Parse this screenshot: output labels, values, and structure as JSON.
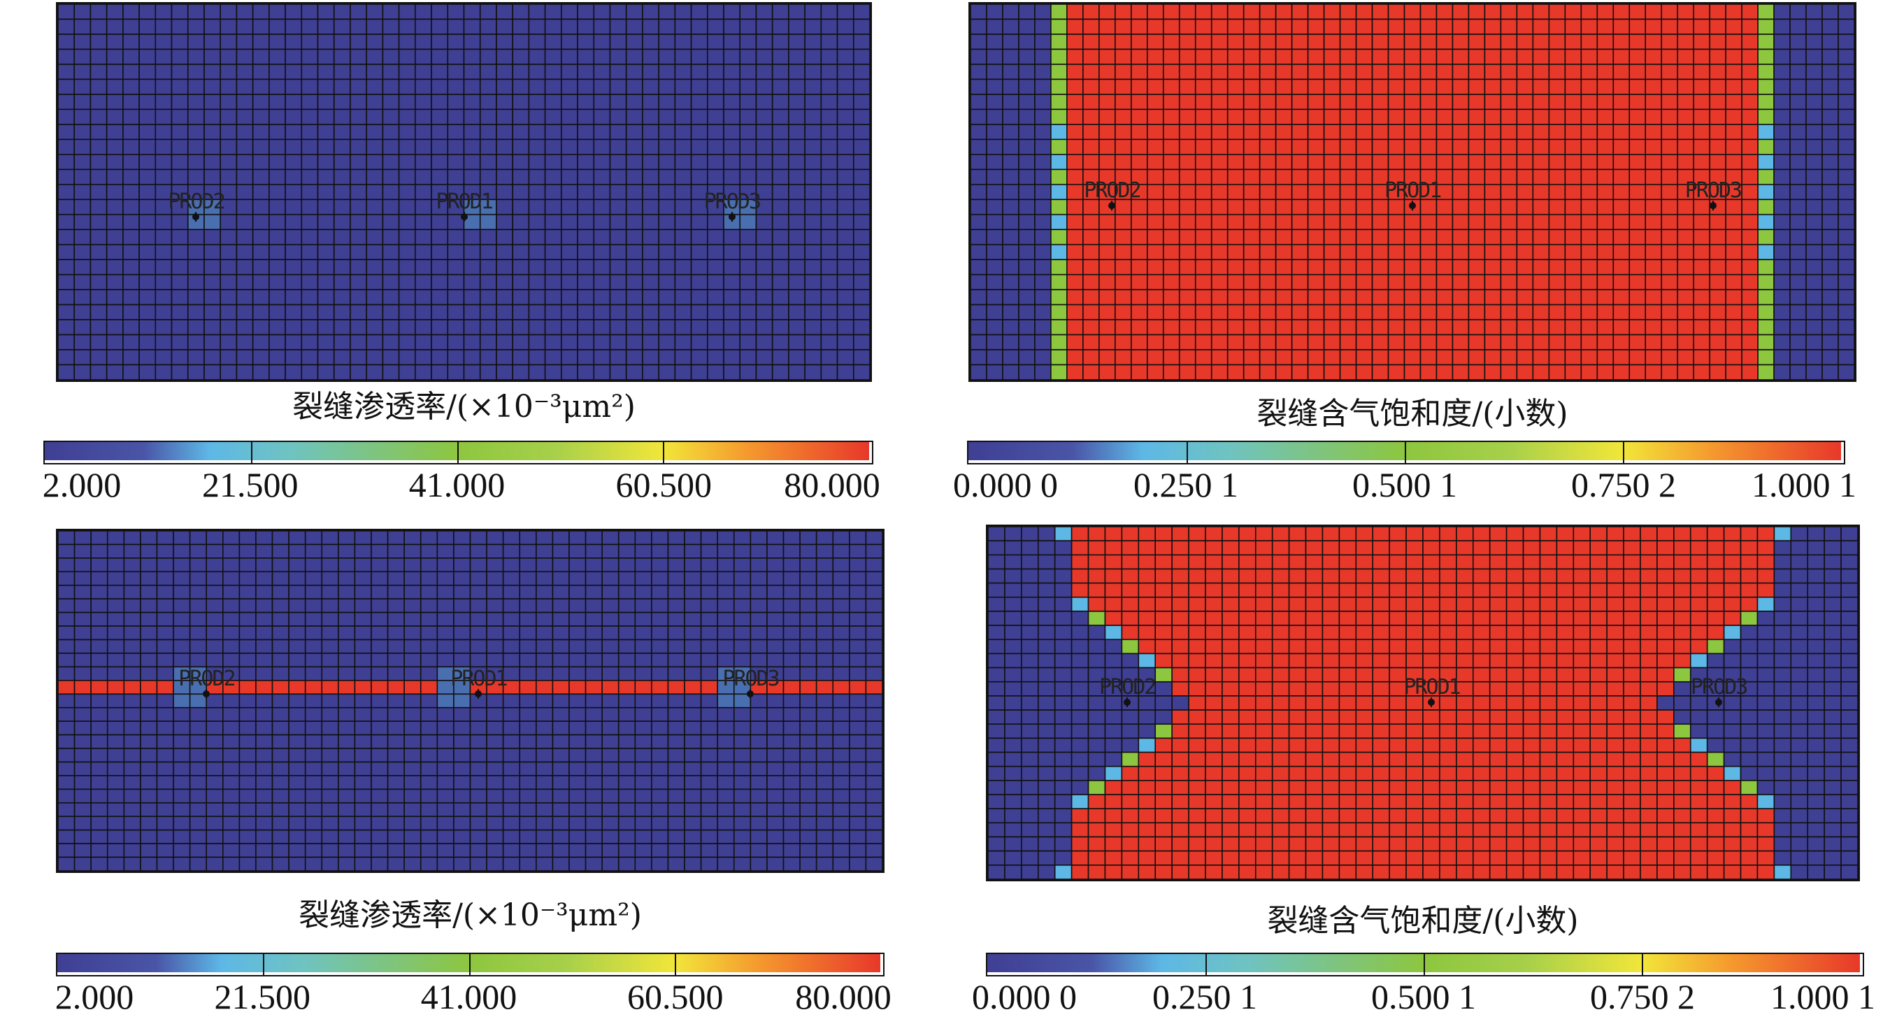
{
  "panels": [
    {
      "id": "tl",
      "kind": "permeability",
      "title": "裂缝渗透率/(×10⁻³μm²)",
      "colorbar_ticks": [
        "2.000",
        "21.500",
        "41.000",
        "60.500",
        "80.000"
      ],
      "wells": [
        "PROD2",
        "PROD1",
        "PROD3"
      ]
    },
    {
      "id": "tr",
      "kind": "saturation",
      "title": "裂缝含气饱和度/(小数)",
      "colorbar_ticks": [
        "0.000 0",
        "0.250 1",
        "0.500 1",
        "0.750 2",
        "1.000 1"
      ],
      "wells": [
        "PROD2",
        "PROD1",
        "PROD3"
      ]
    },
    {
      "id": "bl",
      "kind": "permeability",
      "title": "裂缝渗透率/(×10⁻³μm²)",
      "colorbar_ticks": [
        "2.000",
        "21.500",
        "41.000",
        "60.500",
        "80.000"
      ],
      "wells": [
        "PROD2",
        "PROD1",
        "PROD3"
      ]
    },
    {
      "id": "br",
      "kind": "saturation",
      "title": "裂缝含气饱和度/(小数)",
      "colorbar_ticks": [
        "0.000 0",
        "0.250 1",
        "0.500 1",
        "0.750 2",
        "1.000 1"
      ],
      "wells": [
        "PROD2",
        "PROD1",
        "PROD3"
      ]
    }
  ],
  "colors": {
    "low": "#3f3f94",
    "high": "#e8382a",
    "cyan": "#5db8e6",
    "green": "#8dc63f",
    "grid_line": "#111111",
    "well_cell": "#4a6fb0"
  }
}
